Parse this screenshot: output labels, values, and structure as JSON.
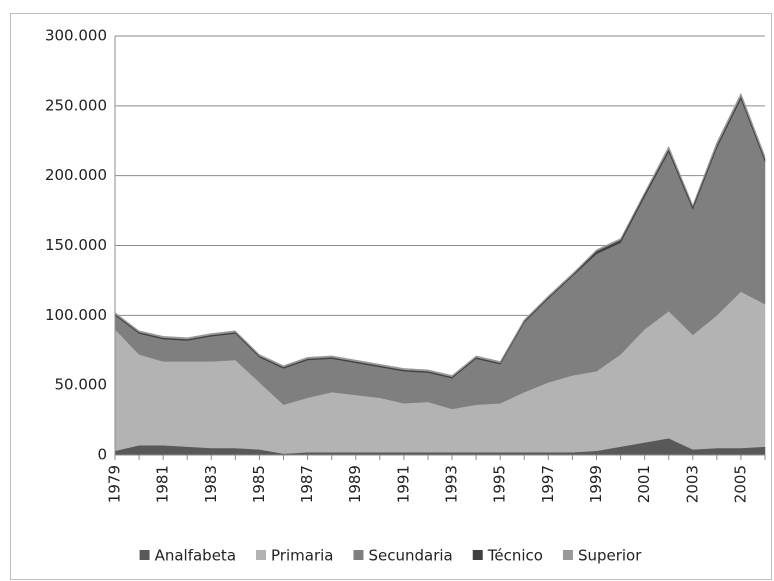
{
  "chart_data": {
    "type": "stacked_area",
    "categories": [
      "1979",
      null,
      "1981",
      null,
      "1983",
      null,
      "1985",
      null,
      "1987",
      null,
      "1989",
      null,
      "1991",
      null,
      "1993",
      null,
      "1995",
      null,
      "1997",
      null,
      "1999",
      null,
      "2001",
      null,
      "2003",
      null,
      "2005",
      null
    ],
    "series": [
      {
        "name": "Analfabeta",
        "color": "#595959",
        "values": [
          3000,
          7000,
          7000,
          6000,
          5000,
          5000,
          4000,
          1000,
          2000,
          2000,
          2000,
          2000,
          2000,
          2000,
          2000,
          2000,
          2000,
          2000,
          2000,
          2000,
          3000,
          6000,
          9000,
          12000,
          4000,
          5000,
          5000,
          6000
        ]
      },
      {
        "name": "Primaria",
        "color": "#b3b3b3",
        "values": [
          87000,
          65000,
          60000,
          61000,
          62000,
          63000,
          48000,
          35000,
          39000,
          43000,
          41000,
          39000,
          35000,
          36000,
          31000,
          34000,
          35000,
          43000,
          50000,
          55000,
          57000,
          66000,
          81000,
          91000,
          82000,
          95000,
          112000,
          102000
        ]
      },
      {
        "name": "Secundaria",
        "color": "#7f7f7f",
        "values": [
          10000,
          15000,
          16000,
          15000,
          18000,
          19000,
          18000,
          26000,
          27000,
          24000,
          23000,
          22000,
          23000,
          21000,
          22000,
          33000,
          28000,
          50000,
          60000,
          71000,
          84000,
          80000,
          95000,
          114000,
          90000,
          120000,
          138000,
          102000
        ]
      },
      {
        "name": "Técnico",
        "color": "#404040",
        "values": [
          1000,
          1000,
          1000,
          1000,
          1000,
          1000,
          1000,
          1000,
          1000,
          1000,
          1000,
          1000,
          1000,
          1000,
          1000,
          1000,
          1000,
          1000,
          1000,
          1000,
          2000,
          2000,
          2000,
          2000,
          2000,
          2000,
          2000,
          2000
        ]
      },
      {
        "name": "Superior",
        "color": "#999999",
        "values": [
          1000,
          1000,
          1000,
          1000,
          1000,
          1000,
          1000,
          1000,
          1000,
          1000,
          1000,
          1000,
          1000,
          1000,
          1000,
          1000,
          1000,
          1000,
          1000,
          1000,
          1000,
          1000,
          1000,
          2000,
          1000,
          2000,
          2000,
          2000
        ]
      }
    ],
    "ylim": [
      0,
      300000
    ],
    "yticks": [
      0,
      {
        "value": 50000,
        "label": "50.000"
      },
      {
        "value": 100000,
        "label": "100.000"
      },
      {
        "value": 150000,
        "label": "150.000"
      },
      {
        "value": 200000,
        "label": "200.000"
      },
      {
        "value": 250000,
        "label": "250.000"
      },
      {
        "value": 300000,
        "label": "300.000"
      }
    ],
    "grid": true,
    "legend": "bottom"
  }
}
